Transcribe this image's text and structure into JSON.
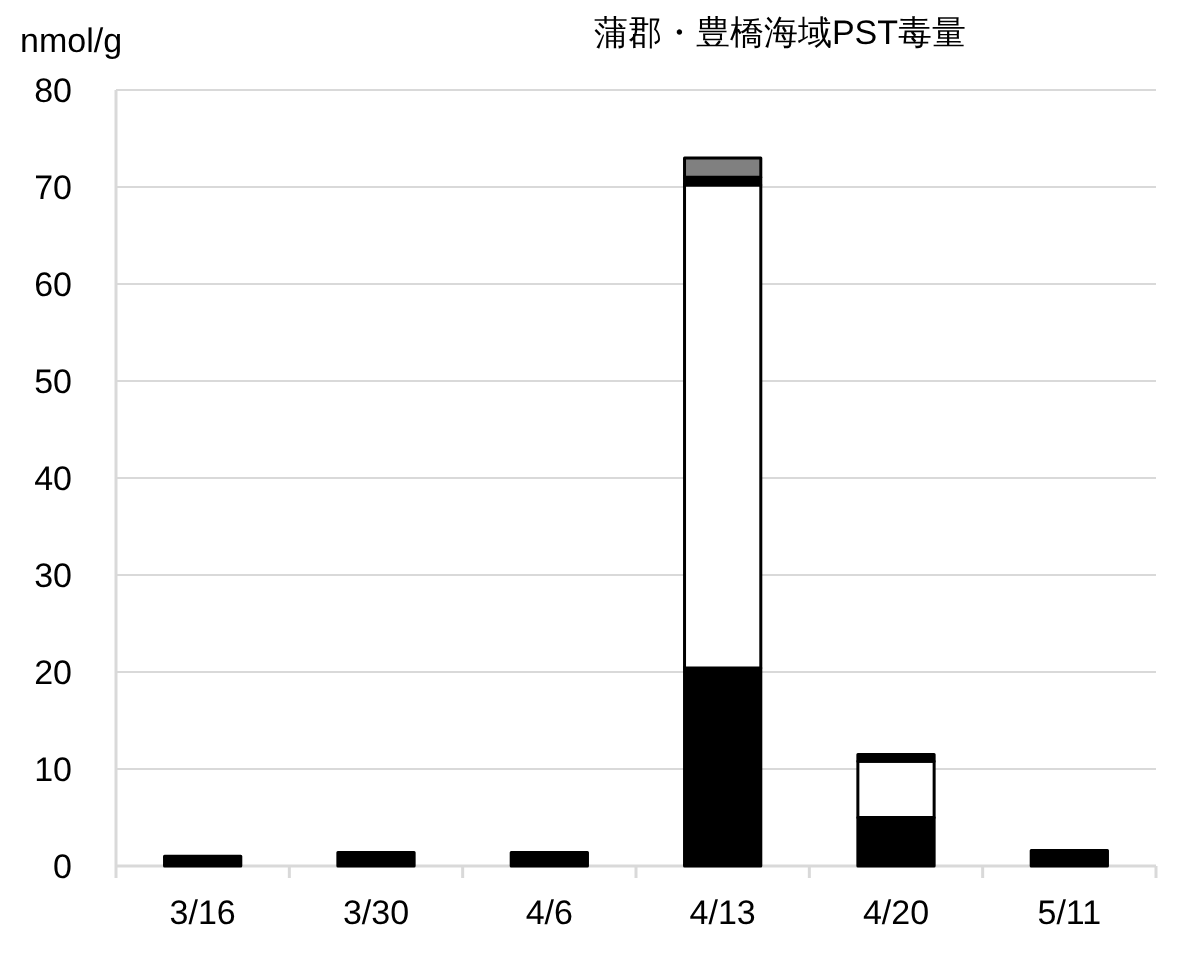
{
  "chart_data": {
    "type": "bar",
    "title": "蒲郡・豊橋海域PST毒量",
    "ylabel": "nmol/g",
    "categories": [
      "3/16",
      "3/30",
      "4/6",
      "4/13",
      "4/20",
      "5/11"
    ],
    "stacked": true,
    "series": [
      {
        "color": "#000000",
        "values": [
          0,
          0,
          0,
          20.4,
          5.0,
          0
        ]
      },
      {
        "color": "#ffffff",
        "values": [
          0,
          0,
          0,
          49.8,
          5.8,
          0
        ]
      },
      {
        "color": "#000000",
        "values": [
          1.0,
          1.4,
          1.4,
          0.8,
          0.7,
          1.6
        ]
      },
      {
        "color": "#808080",
        "values": [
          0,
          0,
          0,
          2.0,
          0,
          0
        ]
      }
    ],
    "ylim": [
      0,
      80
    ],
    "yticks": [
      0,
      10,
      20,
      30,
      40,
      50,
      60,
      70,
      80
    ],
    "grid": "y"
  }
}
